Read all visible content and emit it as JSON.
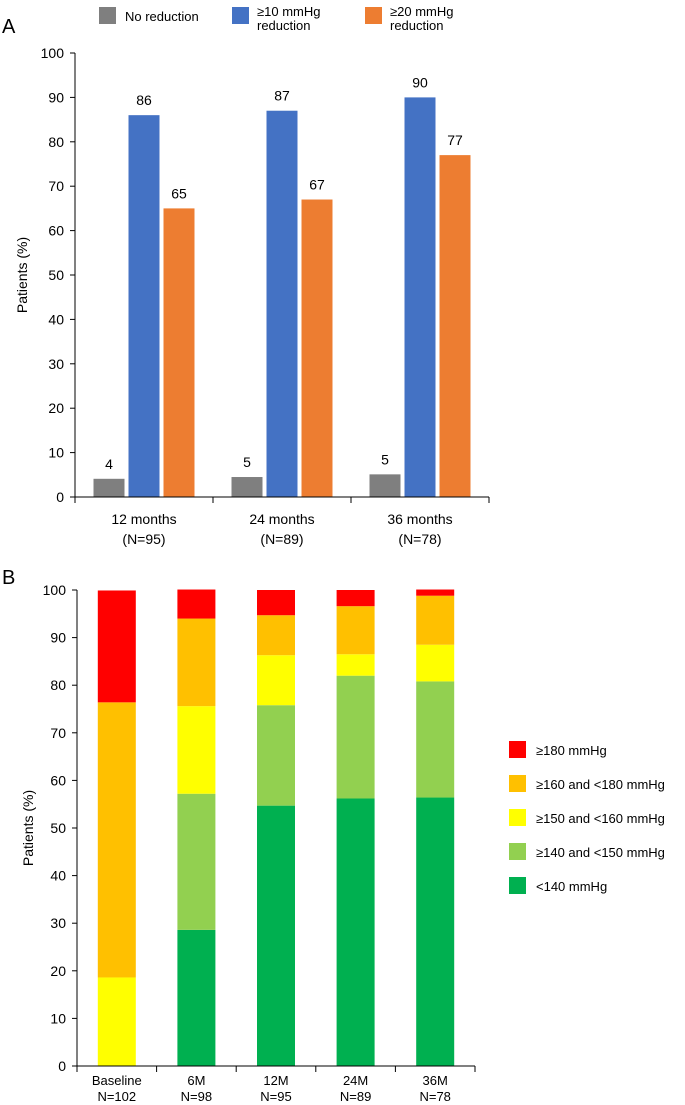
{
  "chart_data": [
    {
      "panel_label": "A",
      "type": "bar",
      "title": "",
      "xlabel": "",
      "ylabel": "Patients (%)",
      "ylim": [
        0,
        100
      ],
      "yticks": [
        0,
        10,
        20,
        30,
        40,
        50,
        60,
        70,
        80,
        90,
        100
      ],
      "categories": [
        {
          "line1": "12 months",
          "line2": "(N=95)"
        },
        {
          "line1": "24 months",
          "line2": "(N=89)"
        },
        {
          "line1": "36 months",
          "line2": "(N=78)"
        }
      ],
      "series": [
        {
          "name": "No reduction",
          "name_lines": [
            "No reduction"
          ],
          "color": "#7f7f7f",
          "values": [
            4,
            5,
            5
          ],
          "bar_values": [
            4.1,
            4.5,
            5.1
          ],
          "labels": [
            "4",
            "5",
            "5"
          ]
        },
        {
          "name": "≥10 mmHg reduction",
          "name_lines": [
            "≥10 mmHg",
            "reduction"
          ],
          "color": "#4472c4",
          "values": [
            86,
            87,
            90
          ],
          "bar_values": [
            86,
            87,
            90
          ],
          "labels": [
            "86",
            "87",
            "90"
          ]
        },
        {
          "name": "≥20 mmHg reduction",
          "name_lines": [
            "≥20 mmHg",
            "reduction"
          ],
          "color": "#ed7d31",
          "values": [
            65,
            67,
            77
          ],
          "bar_values": [
            65,
            67,
            77
          ],
          "labels": [
            "65",
            "67",
            "77"
          ]
        }
      ],
      "legend_position": "top",
      "grid": false
    },
    {
      "panel_label": "B",
      "type": "bar",
      "stacked": true,
      "title": "",
      "xlabel": "",
      "ylabel": "Patients (%)",
      "ylim": [
        0,
        100
      ],
      "yticks": [
        0,
        10,
        20,
        30,
        40,
        50,
        60,
        70,
        80,
        90,
        100
      ],
      "categories": [
        {
          "line1": "Baseline",
          "line2": "N=102"
        },
        {
          "line1": "6M",
          "line2": "N=98"
        },
        {
          "line1": "12M",
          "line2": "N=95"
        },
        {
          "line1": "24M",
          "line2": "N=89"
        },
        {
          "line1": "36M",
          "line2": "N=78"
        }
      ],
      "series": [
        {
          "name": "<140 mmHg",
          "color": "#00b050",
          "values": [
            0,
            28.6,
            54.7,
            56.2,
            56.4
          ]
        },
        {
          "name": "≥140 and <150 mmHg",
          "color": "#92d050",
          "values": [
            0,
            28.6,
            21.1,
            25.8,
            24.4
          ]
        },
        {
          "name": "≥150 and <160 mmHg",
          "color": "#ffff00",
          "values": [
            18.6,
            18.4,
            10.5,
            4.5,
            7.7
          ]
        },
        {
          "name": "≥160 and <180 mmHg",
          "color": "#ffc000",
          "values": [
            57.8,
            18.4,
            8.4,
            10.1,
            10.3
          ]
        },
        {
          "name": "≥180 mmHg",
          "color": "#ff0000",
          "values": [
            23.5,
            6.1,
            5.3,
            3.4,
            1.3
          ]
        }
      ],
      "legend_order": [
        "≥180 mmHg",
        "≥160 and <180 mmHg",
        "≥150 and <160 mmHg",
        "≥140 and <150 mmHg",
        "<140 mmHg"
      ],
      "legend_position": "right",
      "grid": false
    }
  ]
}
